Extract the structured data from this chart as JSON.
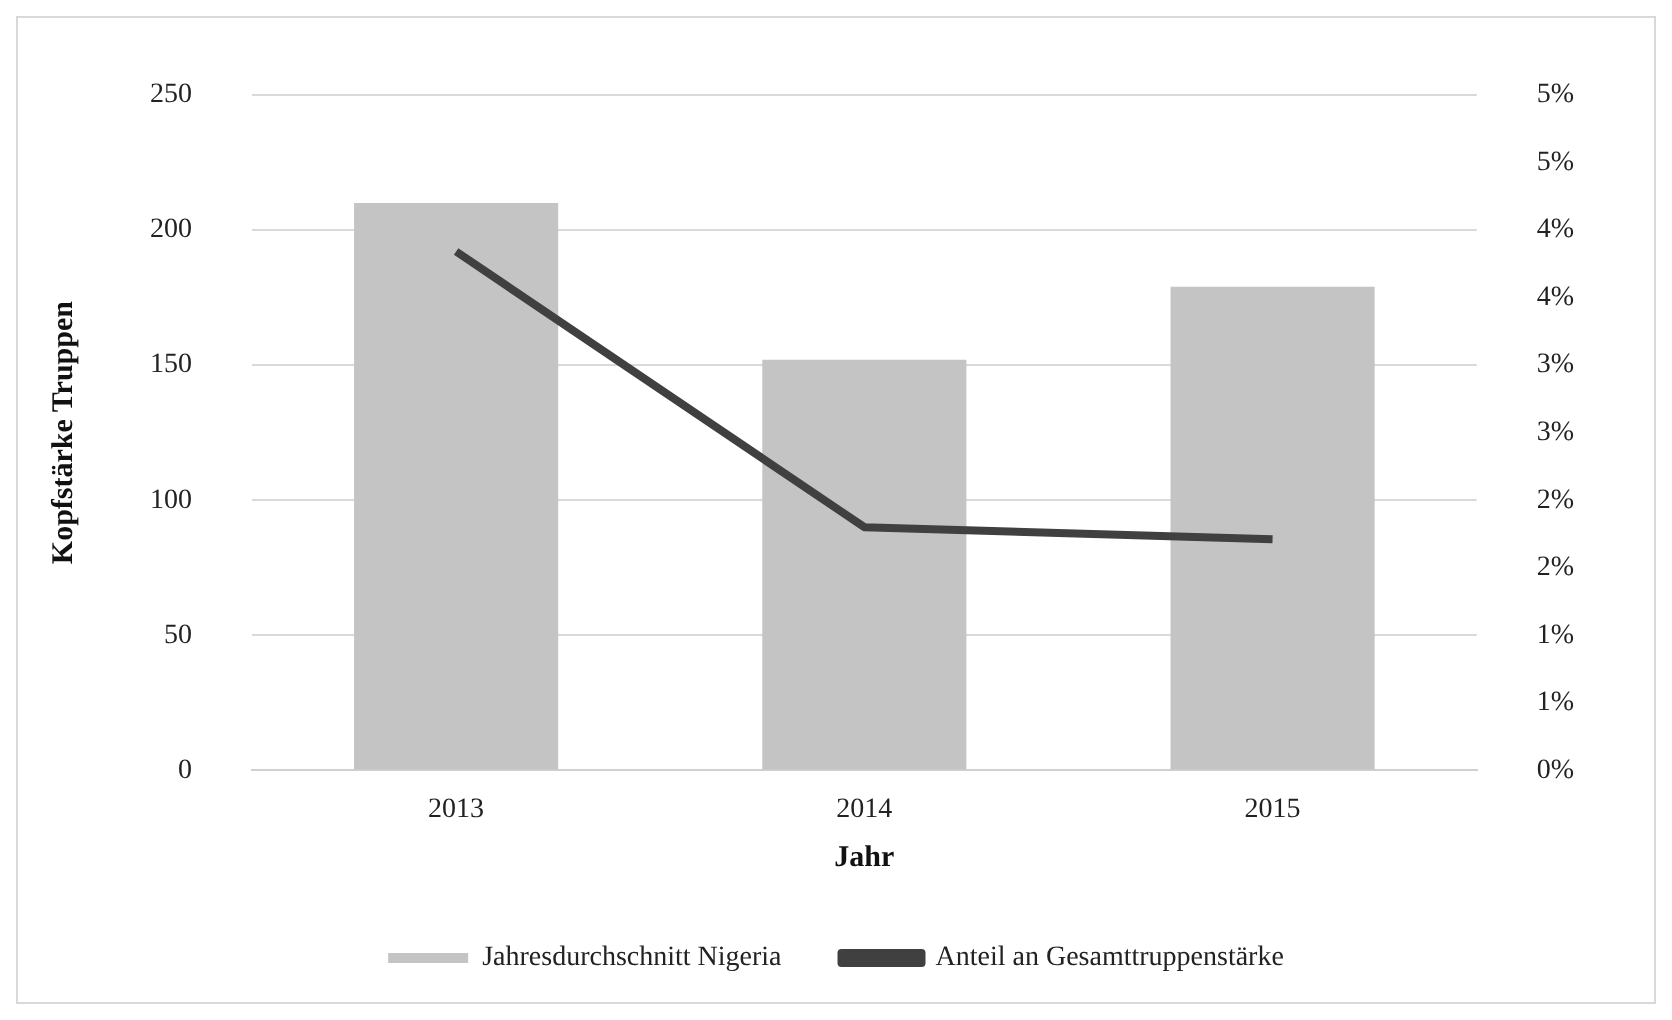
{
  "chart_data": {
    "type": "bar",
    "xlabel": "Jahr",
    "ylabel": "Kopfstärke Truppen",
    "categories": [
      "2013",
      "2014",
      "2015"
    ],
    "series": [
      {
        "name": "Jahresdurchschnitt Nigeria",
        "color": "#c4c4c4",
        "values": [
          210,
          152,
          179
        ]
      },
      {
        "name": "Anteil an Gesamttruppenstärke",
        "type": "line",
        "axis": "y2",
        "color": "#404040",
        "values": [
          3.84,
          1.8,
          1.71
        ]
      }
    ],
    "ylim": [
      0,
      250
    ],
    "yticks": [
      0,
      50,
      100,
      150,
      200,
      250
    ],
    "y2lim": [
      0,
      5
    ],
    "y2ticks": [
      {
        "value": 0,
        "label": "0%"
      },
      {
        "value": 0.5,
        "label": "1%"
      },
      {
        "value": 1,
        "label": "1%"
      },
      {
        "value": 1.5,
        "label": "2%"
      },
      {
        "value": 2,
        "label": "2%"
      },
      {
        "value": 2.5,
        "label": "3%"
      },
      {
        "value": 3,
        "label": "3%"
      },
      {
        "value": 3.5,
        "label": "4%"
      },
      {
        "value": 4,
        "label": "4%"
      },
      {
        "value": 4.5,
        "label": "5%"
      },
      {
        "value": 5,
        "label": "5%"
      }
    ],
    "grid": "y",
    "legend": "bottom",
    "marker": "none"
  }
}
